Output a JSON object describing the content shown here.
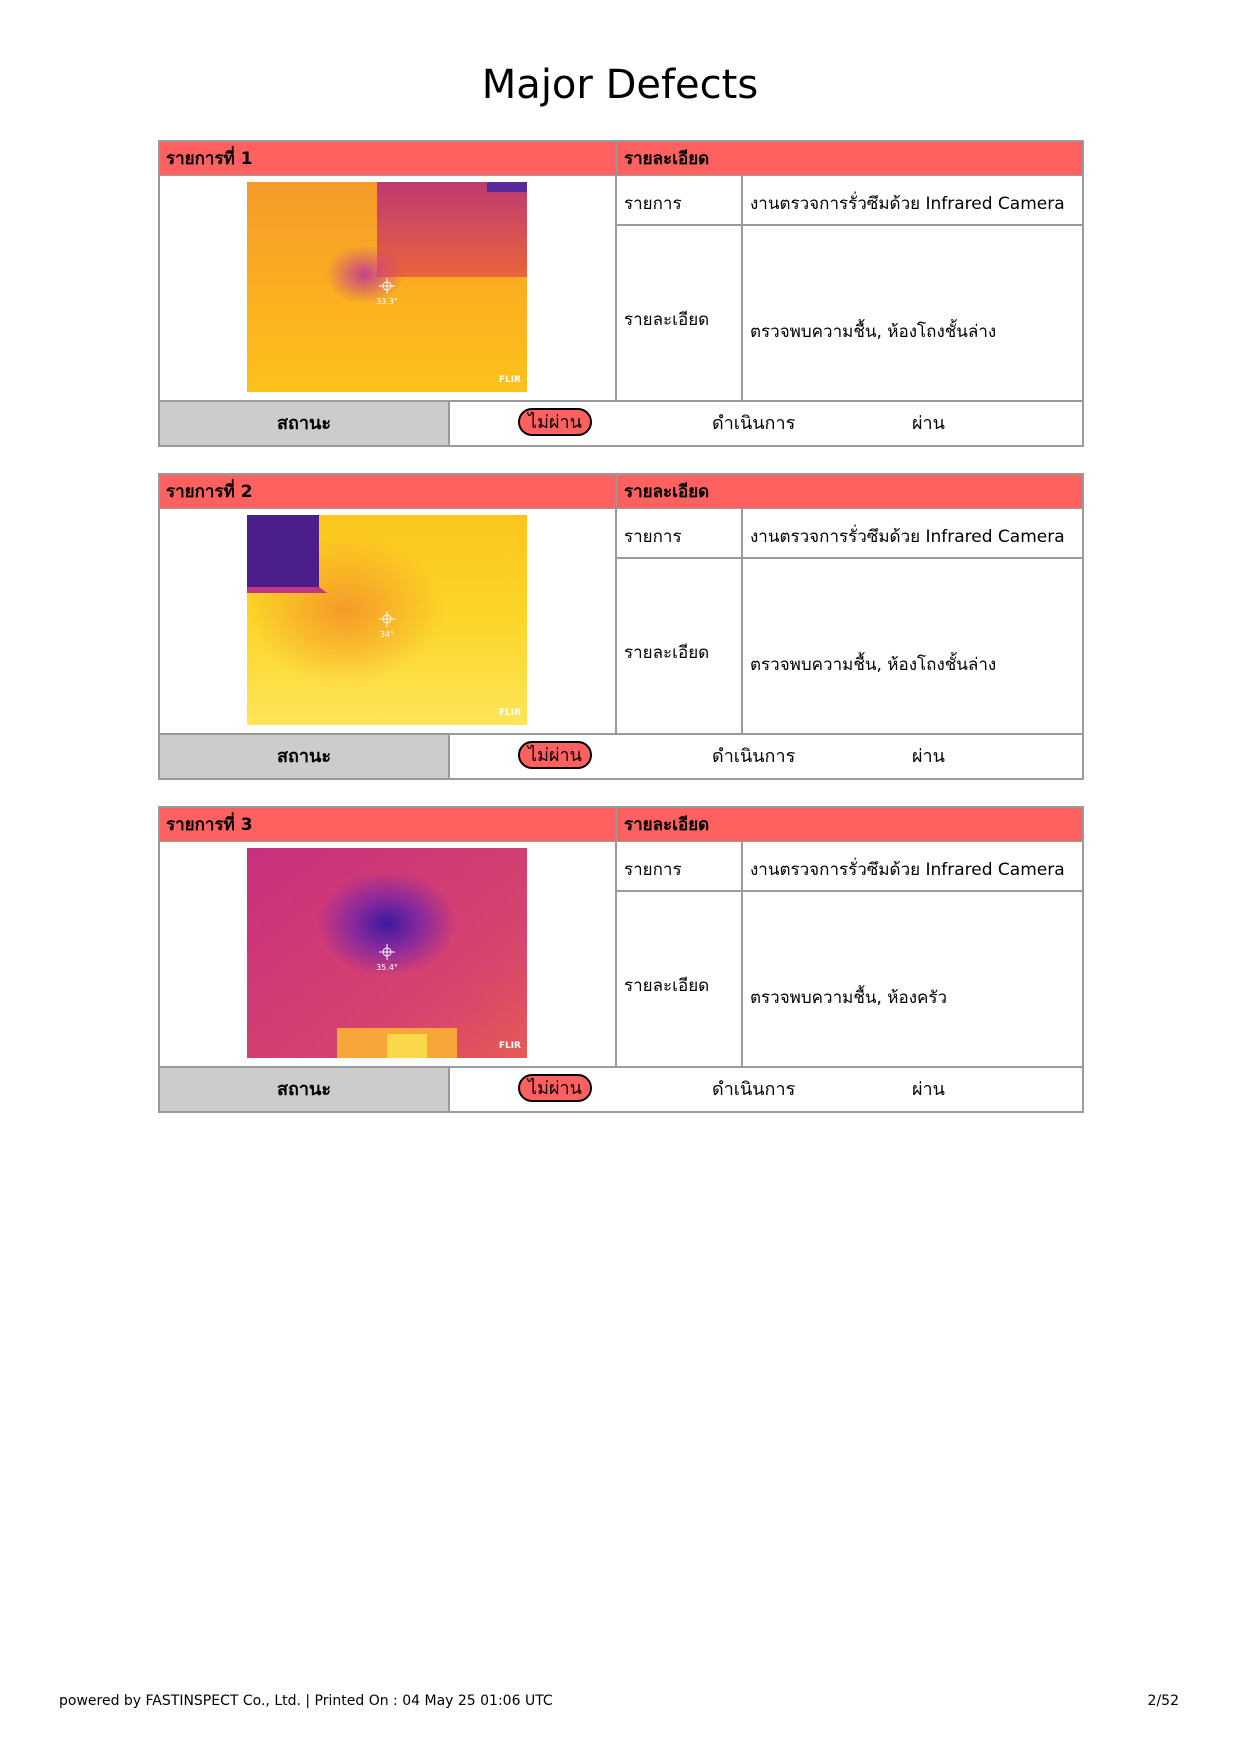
{
  "page_title": "Major Defects",
  "labels": {
    "detail_header": "รายละเอียด",
    "item_label": "รายการ",
    "detail_label": "รายละเอียด",
    "status_label": "สถานะ",
    "fail_badge": "ไม่ผ่าน",
    "action_label": "ดำเนินการ",
    "pass_label": "ผ่าน"
  },
  "defects": [
    {
      "header": "รายการที่ 1",
      "item_text": "งานตรวจการรั่วซึมด้วย Infrared Camera",
      "detail_text": "ตรวจพบความชื้น, ห้องโถงชั้นล่าง",
      "photo": {
        "temperature": "33.3°",
        "brand": "FLIR",
        "palette": "orange"
      }
    },
    {
      "header": "รายการที่ 2",
      "item_text": "งานตรวจการรั่วซึมด้วย Infrared Camera",
      "detail_text": "ตรวจพบความชื้น, ห้องโถงชั้นล่าง",
      "photo": {
        "temperature": "34°",
        "brand": "FLIR",
        "palette": "yellow"
      }
    },
    {
      "header": "รายการที่ 3",
      "item_text": "งานตรวจการรั่วซึมด้วย Infrared Camera",
      "detail_text": "ตรวจพบความชื้น, ห้องครัว",
      "photo": {
        "temperature": "35.4°",
        "brand": "FLIR",
        "palette": "magenta"
      }
    }
  ],
  "footer": {
    "left": "powered by FASTINSPECT Co., Ltd. | Printed On : 04 May 25 01:06 UTC",
    "right": "2/52"
  },
  "colors": {
    "header_bg": "#ff6160",
    "status_bg": "#cccccc",
    "border": "#9a9a9a"
  }
}
